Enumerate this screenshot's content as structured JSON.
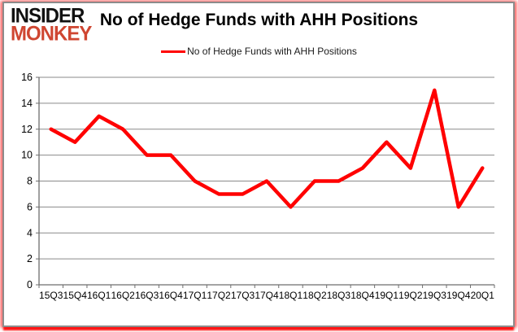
{
  "logo": {
    "line1": "INSIDER",
    "line2": "MONKEY"
  },
  "title": "No of Hedge Funds with AHH Positions",
  "legend": {
    "label": "No of Hedge Funds with AHH Positions"
  },
  "colors": {
    "line": "#ff0000",
    "grid": "#8a8a8a",
    "axis": "#6e6e6e",
    "axis_text": "#000000",
    "logo_accent": "#cf4631",
    "logo_dark": "#111111",
    "frame_border": "#8c8c8c",
    "frame_glow": "#ff0000"
  },
  "chart_data": {
    "type": "line",
    "title": "No of Hedge Funds with AHH Positions",
    "categories": [
      "15Q3",
      "15Q4",
      "16Q1",
      "16Q2",
      "16Q3",
      "16Q4",
      "17Q1",
      "17Q2",
      "17Q3",
      "17Q4",
      "18Q1",
      "18Q2",
      "18Q3",
      "18Q4",
      "19Q1",
      "19Q2",
      "19Q3",
      "19Q4",
      "20Q1"
    ],
    "series": [
      {
        "name": "No of Hedge Funds with AHH Positions",
        "color": "#ff0000",
        "values": [
          12,
          11,
          13,
          12,
          10,
          10,
          8,
          7,
          7,
          8,
          6,
          8,
          8,
          9,
          11,
          9,
          15,
          6,
          9
        ]
      }
    ],
    "xlabel": "",
    "ylabel": "",
    "ylim": [
      0,
      16
    ],
    "ytick_step": 2,
    "grid": true,
    "legend_position": "top-center"
  }
}
